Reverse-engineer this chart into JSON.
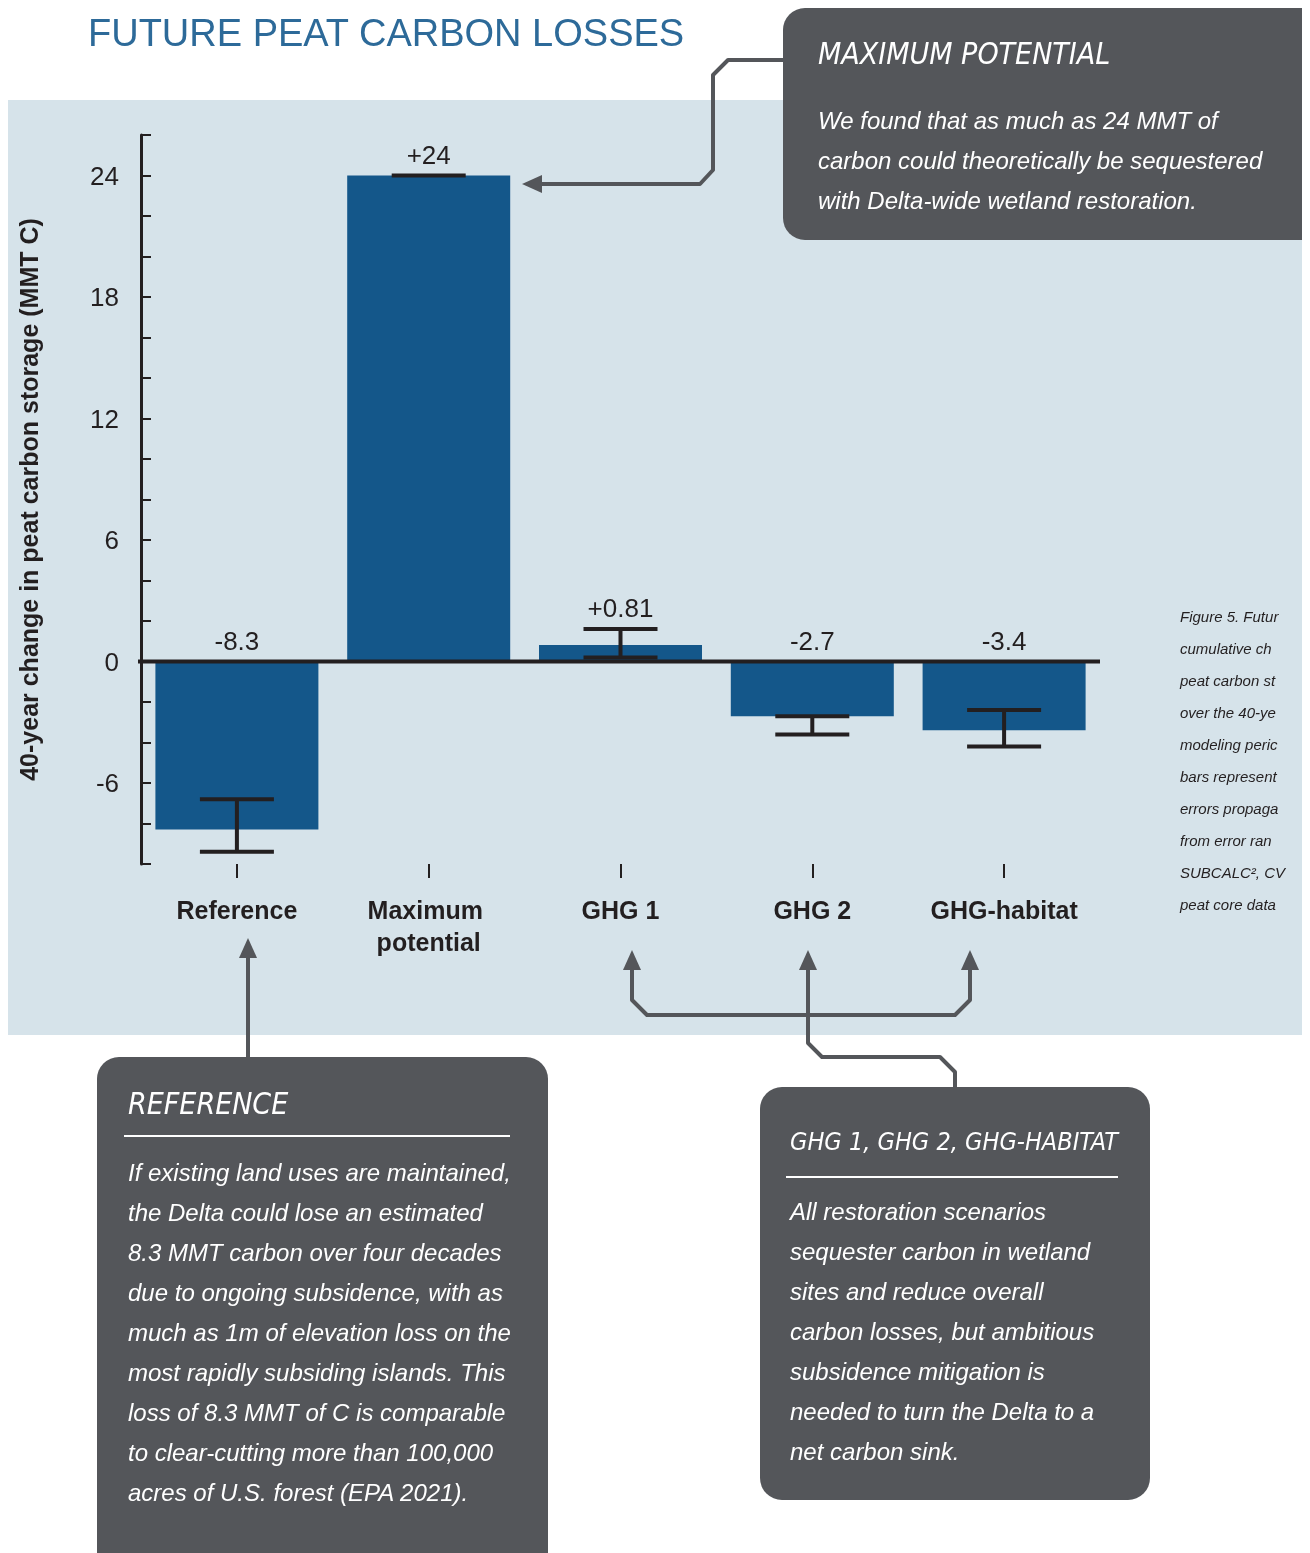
{
  "chart_data": {
    "type": "bar",
    "title": "FUTURE PEAT CARBON LOSSES",
    "ylabel": "40-year change in peat carbon storage (MMT C)",
    "categories": [
      "Reference",
      "Maximum potential",
      "GHG 1",
      "GHG 2",
      "GHG-habitat"
    ],
    "values": [
      -8.3,
      24,
      0.81,
      -2.7,
      -3.4
    ],
    "color": "#14578a",
    "value_labels": [
      "-8.3",
      "+24",
      "+0.81",
      "-2.7",
      "-3.4"
    ],
    "errors": [
      [
        -9.4,
        -6.8
      ],
      [
        24,
        24
      ],
      [
        0.2,
        1.6
      ],
      [
        -3.6,
        -2.7
      ],
      [
        -4.2,
        -2.4
      ]
    ],
    "ylim": [
      -10,
      26
    ],
    "yticks": [
      {
        "value": -10,
        "label": null
      },
      {
        "value": -8,
        "label": null
      },
      -6,
      {
        "value": -4,
        "label": null
      },
      {
        "value": -2,
        "label": null
      },
      0,
      {
        "value": 2,
        "label": null
      },
      {
        "value": 4,
        "label": null
      },
      6,
      {
        "value": 8,
        "label": null
      },
      {
        "value": 10,
        "label": null
      },
      12,
      {
        "value": 14,
        "label": null
      },
      {
        "value": 16,
        "label": null
      },
      18,
      {
        "value": 20,
        "label": null
      },
      {
        "value": 22,
        "label": null
      },
      24,
      {
        "value": 26,
        "label": null
      }
    ],
    "annotations": [
      "MAXIMUM POTENTIAL",
      "We found that as much as 24 MMT of\ncarbon could theoretically be sequestered\nwith Delta-wide wetland restoration.",
      "REFERENCE",
      "If existing land uses are maintained,\nthe Delta could lose an estimated\n8.3 MMT carbon over four decades\ndue to ongoing subsidence, with as\nmuch as 1m of elevation loss on the\nmost rapidly subsiding islands. This\nloss of 8.3 MMT of C is comparable\nto clear-cutting more than 100,000\nacres of U.S. forest (EPA 2021).",
      "GHG 1, GHG 2, GHG-HABITAT",
      "All restoration scenarios\nsequester carbon in wetland\nsites and reduce overall\ncarbon losses, but ambitious\nsubsidence mitigation is\nneeded to turn the Delta to a\nnet carbon sink.",
      "Figure 5. Futur\ncumulative ch\npeat carbon st\nover the 40-ye\nmodeling peric\nbars represent\nerrors propaga\nfrom error ran\nSUBCALC², CV\npeat core data"
    ]
  }
}
